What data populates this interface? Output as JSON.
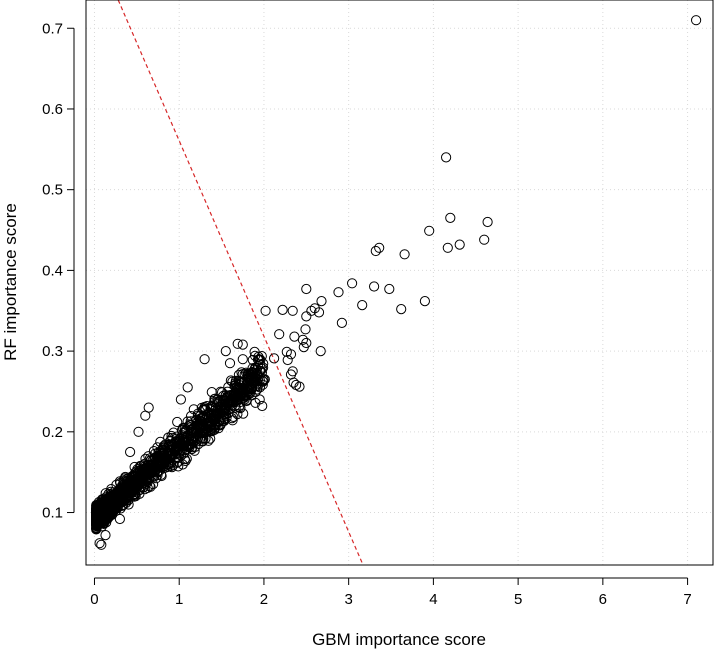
{
  "chart_data": {
    "type": "scatter",
    "title": "",
    "xlabel": "GBM importance score",
    "ylabel": "RF importance score",
    "xlim": [
      -0.1,
      7.3
    ],
    "ylim": [
      0.035,
      0.735
    ],
    "x_ticks": [
      0,
      1,
      2,
      3,
      4,
      5,
      6,
      7
    ],
    "y_ticks": [
      0.1,
      0.2,
      0.3,
      0.4,
      0.5,
      0.6,
      0.7
    ],
    "grid": true,
    "marker": "open-circle",
    "point_color": "#000000",
    "reference_line": {
      "style": "dashed",
      "color": "#d62728",
      "from": [
        0.28,
        0.735
      ],
      "to": [
        3.17,
        0.035
      ]
    },
    "points": [
      [
        7.1,
        0.71
      ],
      [
        4.15,
        0.54
      ],
      [
        4.2,
        0.465
      ],
      [
        4.64,
        0.46
      ],
      [
        4.6,
        0.438
      ],
      [
        3.95,
        0.449
      ],
      [
        4.31,
        0.432
      ],
      [
        4.17,
        0.428
      ],
      [
        3.36,
        0.428
      ],
      [
        3.32,
        0.424
      ],
      [
        3.66,
        0.42
      ],
      [
        3.04,
        0.384
      ],
      [
        3.3,
        0.38
      ],
      [
        3.48,
        0.377
      ],
      [
        2.5,
        0.377
      ],
      [
        2.88,
        0.373
      ],
      [
        2.68,
        0.362
      ],
      [
        3.9,
        0.362
      ],
      [
        3.16,
        0.357
      ],
      [
        3.62,
        0.352
      ],
      [
        2.02,
        0.35
      ],
      [
        2.22,
        0.351
      ],
      [
        2.34,
        0.35
      ],
      [
        2.56,
        0.35
      ],
      [
        2.6,
        0.353
      ],
      [
        2.65,
        0.348
      ],
      [
        2.5,
        0.343
      ],
      [
        2.92,
        0.335
      ],
      [
        2.49,
        0.327
      ],
      [
        2.18,
        0.321
      ],
      [
        2.36,
        0.318
      ],
      [
        2.46,
        0.314
      ],
      [
        2.5,
        0.31
      ],
      [
        2.47,
        0.305
      ],
      [
        2.27,
        0.299
      ],
      [
        2.67,
        0.3
      ],
      [
        2.32,
        0.296
      ],
      [
        2.28,
        0.289
      ],
      [
        2.12,
        0.291
      ],
      [
        2.34,
        0.275
      ],
      [
        2.32,
        0.271
      ],
      [
        2.35,
        0.261
      ],
      [
        2.38,
        0.258
      ],
      [
        2.42,
        0.256
      ],
      [
        1.95,
        0.24
      ],
      [
        1.9,
        0.236
      ],
      [
        1.98,
        0.232
      ],
      [
        2.01,
        0.265
      ],
      [
        1.93,
        0.281
      ],
      [
        1.89,
        0.299
      ],
      [
        1.75,
        0.308
      ],
      [
        1.69,
        0.309
      ],
      [
        1.55,
        0.3
      ],
      [
        1.3,
        0.29
      ],
      [
        1.02,
        0.24
      ],
      [
        0.64,
        0.23
      ],
      [
        0.6,
        0.22
      ],
      [
        0.52,
        0.2
      ],
      [
        0.42,
        0.175
      ],
      [
        0.3,
        0.092
      ],
      [
        0.14,
        0.105
      ],
      [
        0.06,
        0.062
      ],
      [
        0.08,
        0.06
      ],
      [
        0.13,
        0.072
      ],
      [
        1.1,
        0.255
      ],
      [
        1.6,
        0.285
      ],
      [
        1.75,
        0.29
      ],
      [
        1.85,
        0.27
      ]
    ],
    "cluster": {
      "x_range": [
        0.02,
        2.0
      ],
      "y_at_x0": 0.092,
      "slope": 0.092,
      "spread": 0.022,
      "count": 1500
    }
  }
}
